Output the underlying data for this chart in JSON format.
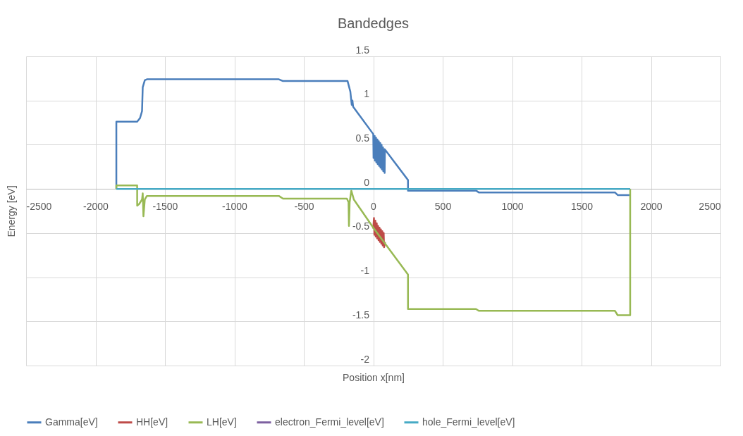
{
  "chart_data": {
    "type": "line",
    "title": "Bandedges",
    "xlabel": "Position x[nm]",
    "ylabel": "Energy [eV]",
    "xlim": [
      -2500,
      2500
    ],
    "xticks": [
      -2500,
      -2000,
      -1500,
      -1000,
      -500,
      0,
      500,
      1000,
      1500,
      2000,
      2500
    ],
    "ylim": [
      -2,
      1.5
    ],
    "yticks": [
      -2,
      -1.5,
      -1,
      -0.5,
      0,
      0.5,
      1,
      1.5
    ],
    "grid": true,
    "legend": "bottom",
    "marker": "none",
    "line_style": "solid",
    "series": [
      {
        "name": "Gamma[eV]",
        "color": "#4a7ebb",
        "x": [
          -1850,
          -1850,
          -1700,
          -1680,
          -1665,
          -1660,
          -1645,
          -1630,
          -680,
          -650,
          -185,
          -165,
          -155,
          -150,
          -145,
          0,
          2,
          10,
          12,
          20,
          22,
          30,
          32,
          40,
          42,
          50,
          52,
          60,
          62,
          70,
          72,
          80,
          82,
          84,
          250,
          250,
          740,
          760,
          1740,
          1760,
          1850
        ],
        "values": [
          0,
          0.76,
          0.76,
          0.8,
          0.88,
          1.15,
          1.23,
          1.24,
          1.24,
          1.22,
          1.22,
          1.1,
          0.95,
          1.0,
          0.93,
          0.62,
          0.35,
          0.6,
          0.32,
          0.58,
          0.3,
          0.56,
          0.28,
          0.54,
          0.26,
          0.52,
          0.24,
          0.5,
          0.22,
          0.47,
          0.2,
          0.45,
          0.18,
          0.445,
          0.1,
          -0.02,
          -0.02,
          -0.04,
          -0.04,
          -0.07,
          -0.07
        ]
      },
      {
        "name": "HH[eV]",
        "color": "#be4b48",
        "x": [
          0,
          5,
          8,
          15,
          18,
          25,
          28,
          35,
          38,
          45,
          48,
          55,
          58,
          65,
          68,
          75,
          78,
          85
        ],
        "values": [
          -0.45,
          -0.33,
          -0.52,
          -0.36,
          -0.54,
          -0.39,
          -0.56,
          -0.42,
          -0.58,
          -0.44,
          -0.6,
          -0.46,
          -0.62,
          -0.48,
          -0.64,
          -0.5,
          -0.66,
          -0.6
        ]
      },
      {
        "name": "LH[eV]",
        "color": "#98b954",
        "x": [
          -1850,
          -1850,
          -1700,
          -1700,
          -1685,
          -1665,
          -1660,
          -1655,
          -1645,
          -1630,
          -680,
          -650,
          -190,
          -178,
          -175,
          -170,
          -158,
          -140,
          0,
          250,
          250,
          740,
          760,
          1740,
          1760,
          1850,
          1850
        ],
        "values": [
          0,
          0.04,
          0.04,
          -0.19,
          -0.17,
          -0.12,
          -0.05,
          -0.31,
          -0.12,
          -0.08,
          -0.08,
          -0.11,
          -0.11,
          -0.15,
          -0.42,
          -0.15,
          -0.02,
          -0.12,
          -0.44,
          -0.97,
          -1.36,
          -1.36,
          -1.38,
          -1.38,
          -1.43,
          -1.43,
          0
        ]
      },
      {
        "name": "electron_Fermi_level[eV]",
        "color": "#7d60a0"
      },
      {
        "name": "hole_Fermi_level[eV]",
        "color": "#46aac5",
        "x": [
          -1850,
          1850
        ],
        "values": [
          0,
          0
        ]
      }
    ]
  }
}
